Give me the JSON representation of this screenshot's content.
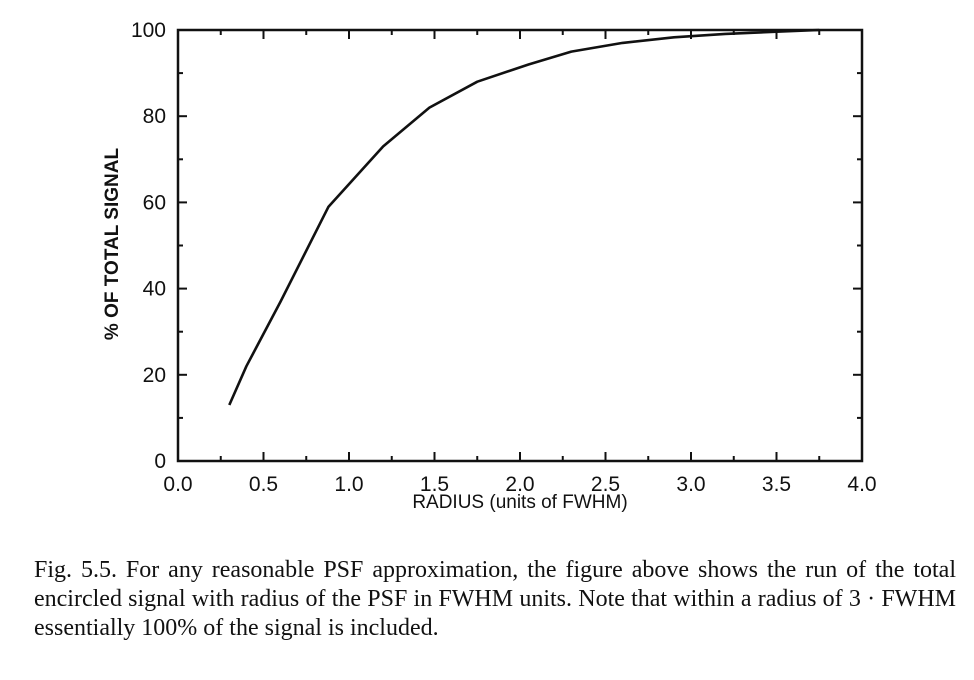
{
  "chart_data": {
    "type": "line",
    "xlabel": "RADIUS (units of FWHM)",
    "ylabel": "% OF TOTAL SIGNAL",
    "xlim": [
      0.0,
      4.0
    ],
    "ylim": [
      0,
      100
    ],
    "xticks": [
      0.0,
      0.5,
      1.0,
      1.5,
      2.0,
      2.5,
      3.0,
      3.5,
      4.0
    ],
    "xtick_labels": [
      "0.0",
      "0.5",
      "1.0",
      "1.5",
      "2.0",
      "2.5",
      "3.0",
      "3.5",
      "4.0"
    ],
    "yticks": [
      0,
      20,
      40,
      60,
      80,
      100
    ],
    "ytick_labels": [
      "0",
      "20",
      "40",
      "60",
      "80",
      "100"
    ],
    "grid": false,
    "series": [
      {
        "x": [
          0.3,
          0.4,
          0.6,
          0.88,
          1.2,
          1.47,
          1.75,
          2.05,
          2.3,
          2.6,
          2.9,
          3.2,
          3.5,
          3.75
        ],
        "y": [
          13,
          22,
          37,
          59,
          73,
          82,
          88,
          92,
          95,
          97,
          98.3,
          99.1,
          99.6,
          100
        ]
      }
    ]
  },
  "caption": {
    "text": "Fig. 5.5. For any reasonable PSF approximation, the figure above shows the run of the total encircled signal with radius of the PSF in FWHM units. Note that within a radius of 3 · FWHM essentially 100% of the signal is included."
  }
}
